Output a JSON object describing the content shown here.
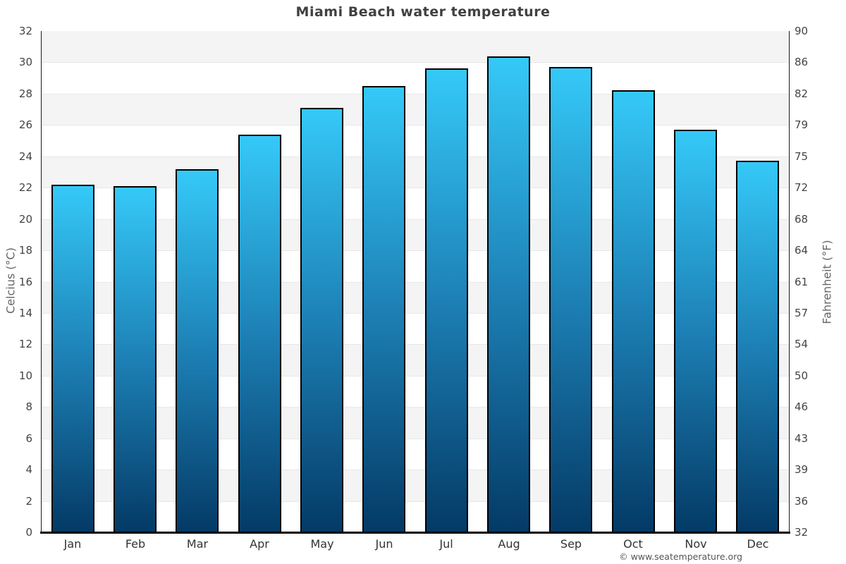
{
  "title": "Miami Beach water temperature",
  "footer": "© www.seatemperature.org",
  "chart_data": {
    "type": "bar",
    "title": "Miami Beach water temperature",
    "categories": [
      "Jan",
      "Feb",
      "Mar",
      "Apr",
      "May",
      "Jun",
      "Jul",
      "Aug",
      "Sep",
      "Oct",
      "Nov",
      "Dec"
    ],
    "values": [
      22.2,
      22.1,
      23.2,
      25.4,
      27.1,
      28.5,
      29.6,
      30.4,
      29.7,
      28.2,
      25.7,
      23.7
    ],
    "values_unit": "°C",
    "ylabel_left": "Celcius (°C)",
    "ylabel_right": "Fahrenheit (°F)",
    "ylim_celsius": [
      0,
      32
    ],
    "celsius_ticks": [
      32,
      30,
      28,
      26,
      24,
      22,
      20,
      18,
      16,
      14,
      12,
      10,
      8,
      6,
      4,
      2,
      0
    ],
    "fahrenheit_ticks": [
      90,
      86,
      82,
      79,
      75,
      72,
      68,
      64,
      61,
      57,
      54,
      50,
      46,
      43,
      39,
      36,
      32
    ],
    "legend": "none",
    "grid": "alternating horizontal bands every 2°C",
    "colors": {
      "bar_gradient_top": "#35c9f8",
      "bar_gradient_mid": "#1d80b5",
      "bar_gradient_bottom": "#043a66",
      "bar_border": "#000000",
      "band_gray": "#f4f4f4",
      "band_white": "#ffffff",
      "gridline": "#e8e8e8",
      "axis_line": "#000000",
      "tick_text": "#444444",
      "axis_title_text": "#666666",
      "title_text": "#404040",
      "footer_text": "#555555"
    }
  }
}
